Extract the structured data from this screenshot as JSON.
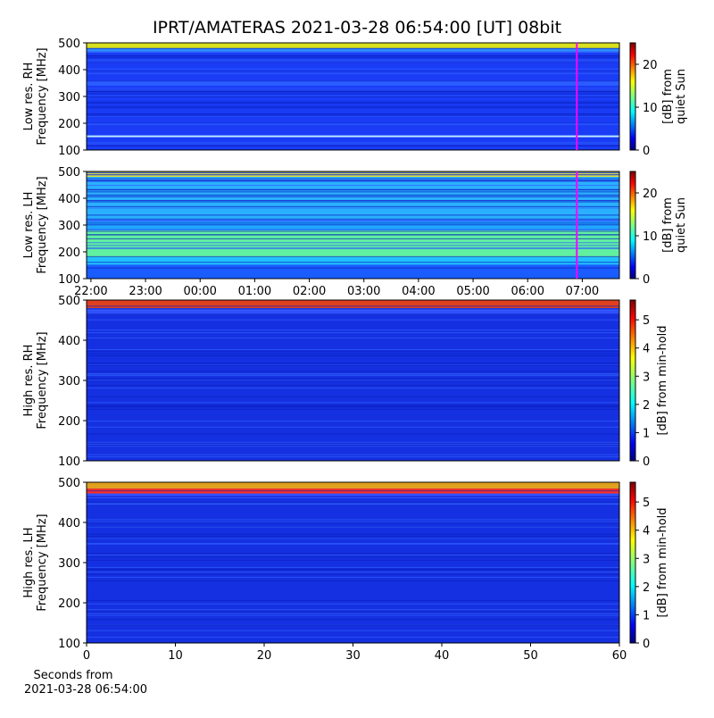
{
  "title": "IPRT/AMATERAS 2021-03-28 06:54:00 [UT]   08bit",
  "chart_data": [
    {
      "type": "heatmap",
      "ylabel": [
        "Low res. RH",
        "Frequency [MHz]"
      ],
      "ylim": [
        100,
        500
      ],
      "yticks": [
        100,
        200,
        300,
        400,
        500
      ],
      "xlim": [
        21.92,
        31.68
      ],
      "marker_x": 30.9,
      "marker_color": "#ff00ff",
      "colormap": "jet",
      "clim": [
        0,
        25
      ],
      "cticks": [
        0,
        10,
        20
      ],
      "clabel": [
        "[dB] from",
        "quiet Sun"
      ]
    },
    {
      "type": "heatmap",
      "ylabel": [
        "Low res. LH",
        "Frequency [MHz]"
      ],
      "ylim": [
        100,
        500
      ],
      "yticks": [
        100,
        200,
        300,
        400,
        500
      ],
      "xlim": [
        21.92,
        31.68
      ],
      "xticks": [
        {
          "value": 22,
          "label": "22:00"
        },
        {
          "value": 23,
          "label": "23:00"
        },
        {
          "value": 24,
          "label": "00:00"
        },
        {
          "value": 25,
          "label": "01:00"
        },
        {
          "value": 26,
          "label": "02:00"
        },
        {
          "value": 27,
          "label": "03:00"
        },
        {
          "value": 28,
          "label": "04:00"
        },
        {
          "value": 29,
          "label": "05:00"
        },
        {
          "value": 30,
          "label": "06:00"
        },
        {
          "value": 31,
          "label": "07:00"
        }
      ],
      "marker_x": 30.9,
      "marker_color": "#ff00ff",
      "colormap": "jet",
      "clim": [
        0,
        25
      ],
      "cticks": [
        0,
        10,
        20
      ],
      "clabel": [
        "[dB] from",
        "quiet Sun"
      ]
    },
    {
      "type": "heatmap",
      "ylabel": [
        "High res. RH",
        "Frequency [MHz]"
      ],
      "ylim": [
        100,
        500
      ],
      "yticks": [
        100,
        200,
        300,
        400,
        500
      ],
      "xlim": [
        0,
        60
      ],
      "colormap": "jet",
      "clim": [
        0,
        5.7
      ],
      "cticks": [
        0,
        1,
        2,
        3,
        4,
        5
      ],
      "clabel": [
        "[dB] from min-hold"
      ]
    },
    {
      "type": "heatmap",
      "ylabel": [
        "High res. LH",
        "Frequency [MHz]"
      ],
      "ylim": [
        100,
        500
      ],
      "yticks": [
        100,
        200,
        300,
        400,
        500
      ],
      "xlim": [
        0,
        60
      ],
      "xticks": [
        0,
        10,
        20,
        30,
        40,
        50,
        60
      ],
      "xlabel": [
        "Seconds from",
        "2021-03-28 06:54:00"
      ],
      "colormap": "jet",
      "clim": [
        0,
        5.7
      ],
      "cticks": [
        0,
        1,
        2,
        3,
        4,
        5
      ],
      "clabel": [
        "[dB] from min-hold"
      ]
    }
  ]
}
